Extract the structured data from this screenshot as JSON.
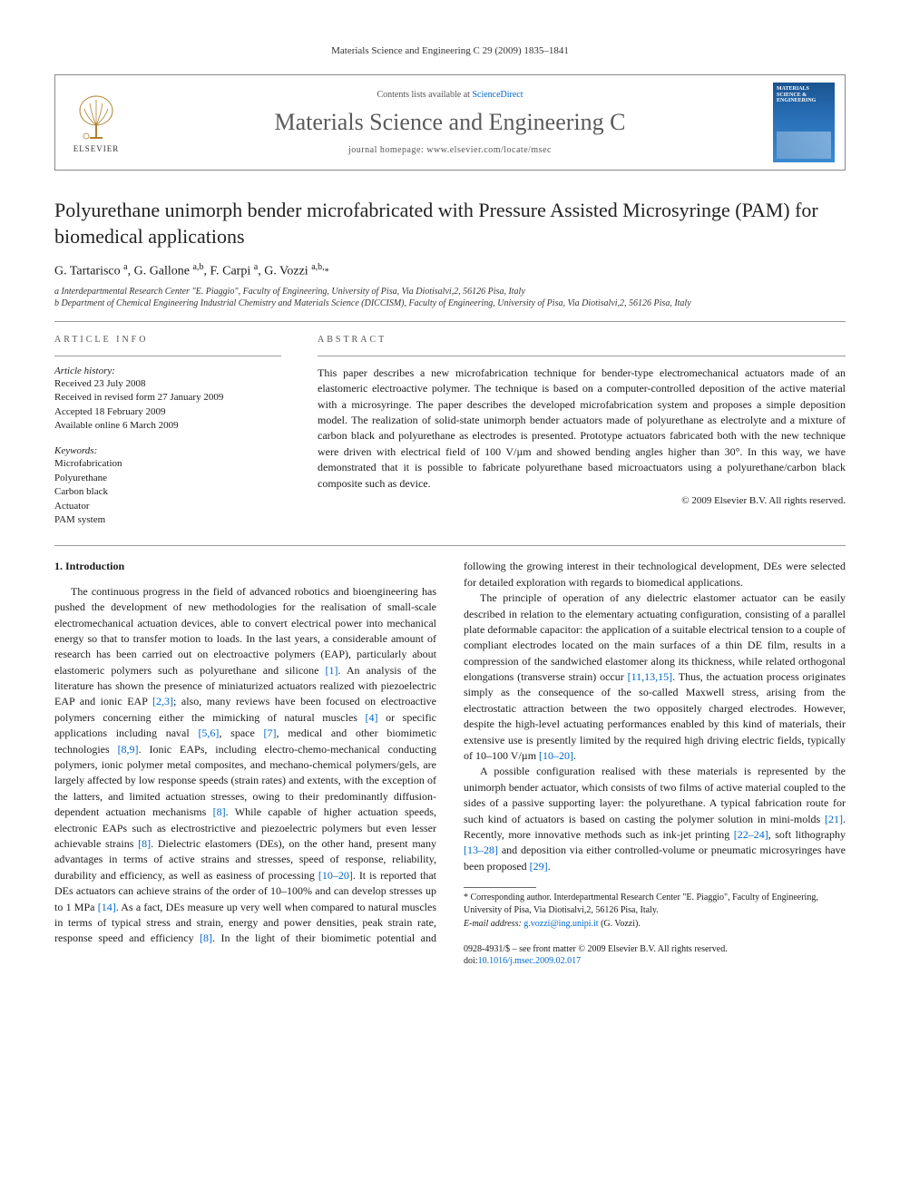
{
  "running_head": "Materials Science and Engineering C 29 (2009) 1835–1841",
  "masthead": {
    "contents_line_prefix": "Contents lists available at ",
    "contents_link": "ScienceDirect",
    "journal_name": "Materials Science and Engineering C",
    "homepage_prefix": "journal homepage: ",
    "homepage_url": "www.elsevier.com/locate/msec",
    "elsevier_label": "ELSEVIER",
    "cover_title": "MATERIALS SCIENCE & ENGINEERING"
  },
  "title": "Polyurethane unimorph bender microfabricated with Pressure Assisted Microsyringe (PAM) for biomedical applications",
  "authors_html": "G. Tartarisco <sup>a</sup>, G. Gallone <sup>a,b</sup>, F. Carpi <sup>a</sup>, G. Vozzi <sup>a,b,</sup><span class='star'>*</span>",
  "affiliations": [
    "a Interdepartmental Research Center \"E. Piaggio\", Faculty of Engineering, University of Pisa, Via Diotisalvi,2, 56126 Pisa, Italy",
    "b Department of Chemical Engineering Industrial Chemistry and Materials Science (DICCISM), Faculty of Engineering, University of Pisa, Via Diotisalvi,2, 56126 Pisa, Italy"
  ],
  "article_info_label": "article info",
  "abstract_label": "abstract",
  "history": {
    "label": "Article history:",
    "items": [
      "Received 23 July 2008",
      "Received in revised form 27 January 2009",
      "Accepted 18 February 2009",
      "Available online 6 March 2009"
    ]
  },
  "keywords": {
    "label": "Keywords:",
    "items": [
      "Microfabrication",
      "Polyurethane",
      "Carbon black",
      "Actuator",
      "PAM system"
    ]
  },
  "abstract": "This paper describes a new microfabrication technique for bender-type electromechanical actuators made of an elastomeric electroactive polymer. The technique is based on a computer-controlled deposition of the active material with a microsyringe. The paper describes the developed microfabrication system and proposes a simple deposition model. The realization of solid-state unimorph bender actuators made of polyurethane as electrolyte and a mixture of carbon black and polyurethane as electrodes is presented. Prototype actuators fabricated both with the new technique were driven with electrical field of 100 V/µm and showed bending angles higher than 30°. In this way, we have demonstrated that it is possible to fabricate polyurethane based microactuators using a polyurethane/carbon black composite such as device.",
  "copyright": "© 2009 Elsevier B.V. All rights reserved.",
  "sections": {
    "intro_heading": "1. Introduction",
    "col1_p1": "The continuous progress in the field of advanced robotics and bioengineering has pushed the development of new methodologies for the realisation of small-scale electromechanical actuation devices, able to convert electrical power into mechanical energy so that to transfer motion to loads. In the last years, a considerable amount of research has been carried out on electroactive polymers (EAP), particularly about elastomeric polymers such as polyurethane and silicone ",
    "col1_p1b": ". An analysis of the literature has shown the presence of miniaturized actuators realized with piezoelectric EAP and ionic EAP ",
    "col1_p1c": "; also, many reviews have been focused on electroactive polymers concerning either the mimicking of natural muscles ",
    "col1_p1d": " or specific applications including naval ",
    "col1_p1e": ", space ",
    "col1_p1f": ", medical and other biomimetic technologies ",
    "col1_p1g": ". Ionic EAPs, including electro-chemo-mechanical conducting polymers, ionic polymer metal composites, and mechano-chemical polymers/gels, are largely affected by low response speeds (strain rates) and extents, with the exception of the latters, and limited actuation stresses, owing to their predominantly diffusion-dependent actuation mechanisms ",
    "col1_p1h": ". While capable of higher actuation speeds, electronic EAPs such as electrostrictive and piezoelectric polymers but even lesser achievable strains ",
    "col1_p1i": ". Dielectric elastomers (DEs), on the other hand, present many advantages in terms of active strains and stresses, speed of response, reliability, durability and efficiency, as well as easiness of processing ",
    "col2_p1a": ". It is reported that DEs actuators can achieve strains of the order of 10–100% and can develop stresses up to 1 MPa ",
    "col2_p1b": ". As a fact, DEs measure up very well when compared to natural muscles in terms of typical stress and strain, energy and power densities, peak strain rate, response speed and efficiency ",
    "col2_p1c": ". In the light of their biomimetic potential and following the growing interest in their technological development, DEs were selected for detailed exploration with regards to biomedical applications.",
    "col2_p2a": "The principle of operation of any dielectric elastomer actuator can be easily described in relation to the elementary actuating configuration, consisting of a parallel plate deformable capacitor: the application of a suitable electrical tension to a couple of compliant electrodes located on the main surfaces of a thin DE film, results in a compression of the sandwiched elastomer along its thickness, while related orthogonal elongations (transverse strain) occur ",
    "col2_p2b": ". Thus, the actuation process originates simply as the consequence of the so-called Maxwell stress, arising from the electrostatic attraction between the two oppositely charged electrodes. However, despite the high-level actuating performances enabled by this kind of materials, their extensive use is presently limited by the required high driving electric fields, typically of 10–100 V/µm ",
    "col2_p2c": ".",
    "col2_p3a": "A possible configuration realised with these materials is represented by the unimorph bender actuator, which consists of two films of active material coupled to the sides of a passive supporting layer: the polyurethane. A typical fabrication route for such kind of actuators is based on casting the polymer solution in mini-molds ",
    "col2_p3b": ". Recently, more innovative methods such as ink-jet printing ",
    "col2_p3c": ", soft lithography ",
    "col2_p3d": " and deposition via either controlled-volume or pneumatic microsyringes have been proposed ",
    "col2_p3e": "."
  },
  "refs": {
    "r1": "[1]",
    "r23": "[2,3]",
    "r4": "[4]",
    "r56": "[5,6]",
    "r7": "[7]",
    "r89": "[8,9]",
    "r8": "[8]",
    "r10_20": "[10–20]",
    "r14": "[14]",
    "r11_13_15": "[11,13,15]",
    "r21": "[21]",
    "r22_24": "[22–24]",
    "r13_28": "[13–28]",
    "r29": "[29]"
  },
  "corresponding": {
    "text": "* Corresponding author. Interdepartmental Research Center \"E. Piaggio\", Faculty of Engineering, University of Pisa, Via Diotisalvi,2, 56126 Pisa, Italy.",
    "email_label": "E-mail address: ",
    "email": "g.vozzi@ing.unipi.it",
    "email_suffix": " (G. Vozzi)."
  },
  "footer": {
    "issn": "0928-4931/$ – see front matter © 2009 Elsevier B.V. All rights reserved.",
    "doi_label": "doi:",
    "doi": "10.1016/j.msec.2009.02.017"
  },
  "colors": {
    "link": "#0066cc",
    "text": "#1a1a1a",
    "journal_name": "#5a5a5a",
    "cover_bg_top": "#1a5490",
    "cover_bg_bottom": "#3a8ad0"
  }
}
